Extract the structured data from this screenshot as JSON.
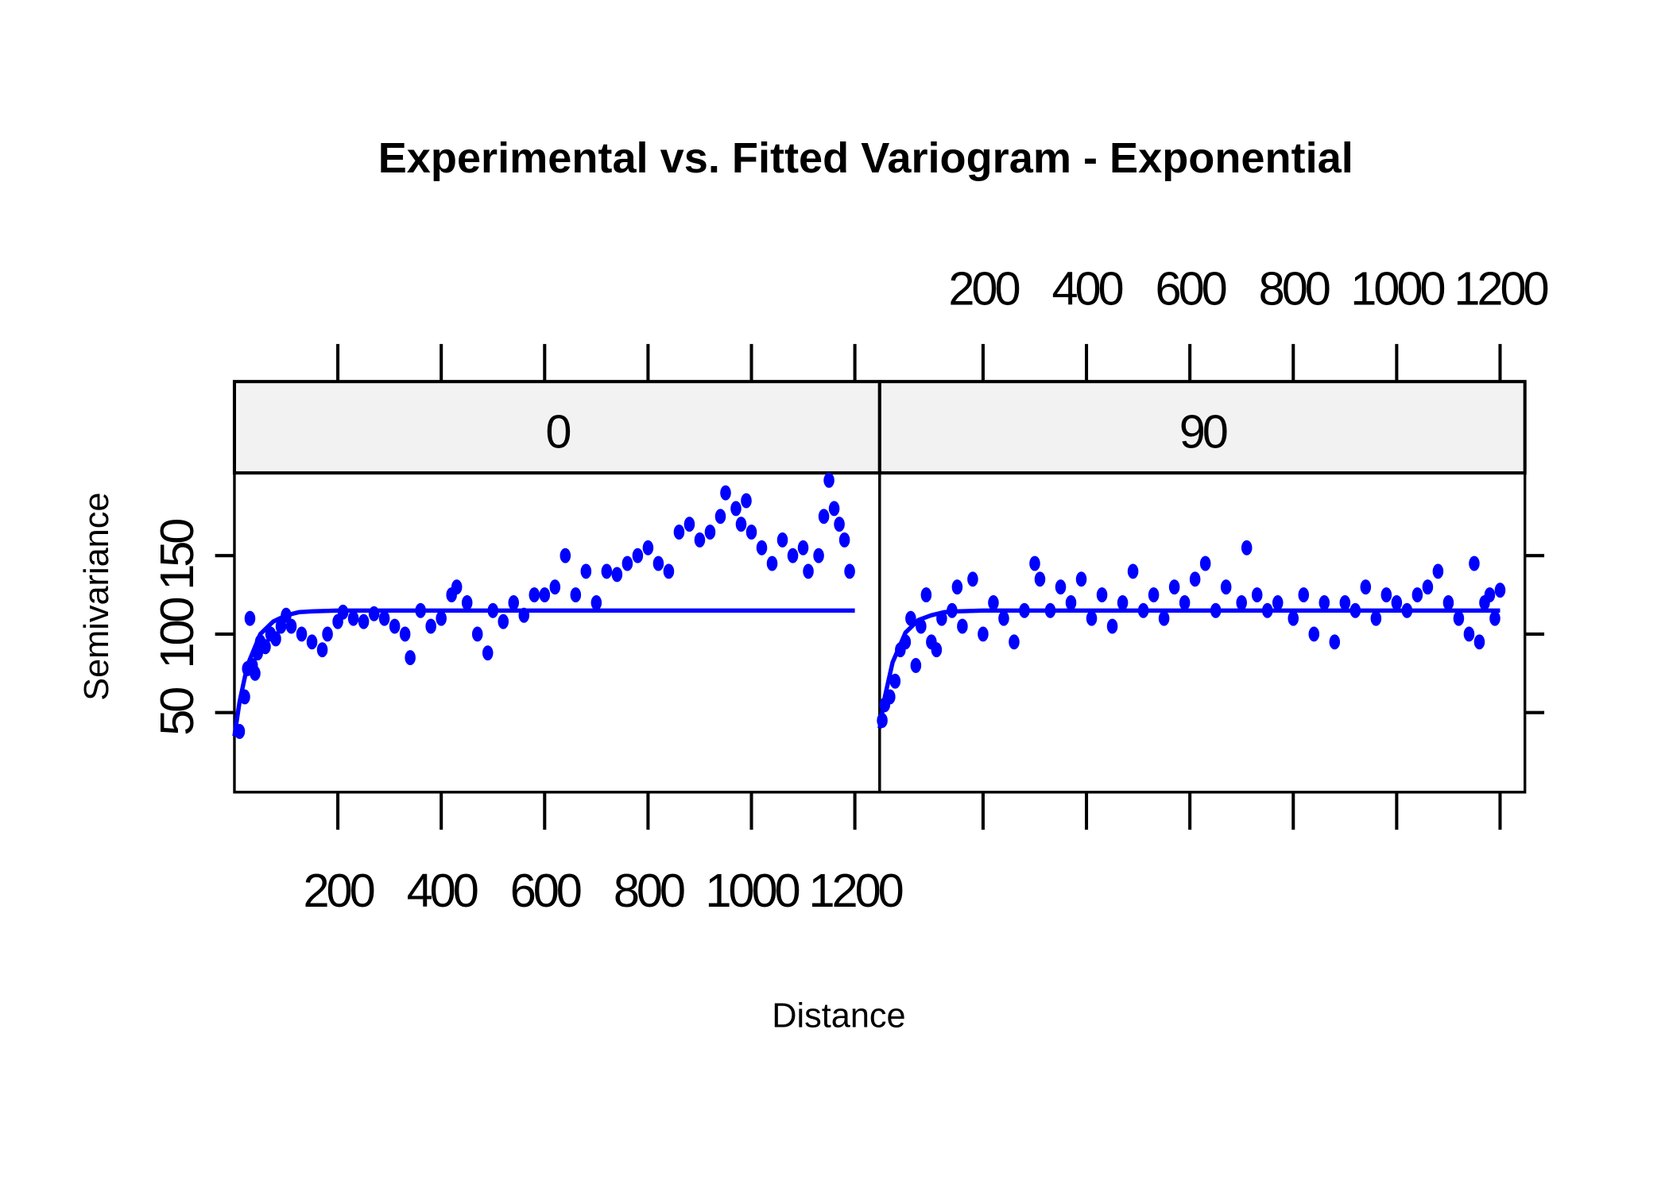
{
  "chart_data": {
    "type": "scatter",
    "title": "Experimental vs. Fitted Variogram - Exponential",
    "x_label": "Distance",
    "y_label": "Semivariance",
    "color": "#0000ff",
    "xlim": [
      0,
      1248
    ],
    "ylim": [
      -0.7,
      202.7
    ],
    "xticks": [
      200,
      400,
      600,
      800,
      1000,
      1200
    ],
    "yticks": [
      50,
      100,
      150
    ],
    "panels": [
      {
        "strip": "0",
        "x": [
          10,
          20,
          25,
          30,
          35,
          40,
          45,
          50,
          60,
          70,
          80,
          90,
          100,
          110,
          130,
          150,
          170,
          180,
          200,
          210,
          230,
          250,
          270,
          290,
          310,
          330,
          340,
          360,
          380,
          400,
          420,
          430,
          450,
          470,
          490,
          500,
          520,
          540,
          560,
          580,
          600,
          620,
          640,
          660,
          680,
          700,
          720,
          740,
          760,
          780,
          800,
          820,
          840,
          860,
          880,
          900,
          920,
          940,
          950,
          970,
          980,
          990,
          1000,
          1020,
          1040,
          1060,
          1080,
          1100,
          1110,
          1130,
          1140,
          1150,
          1160,
          1170,
          1180,
          1190
        ],
        "y": [
          38,
          60,
          78,
          110,
          80,
          75,
          88,
          95,
          92,
          100,
          97,
          105,
          112,
          105,
          100,
          95,
          90,
          100,
          108,
          114,
          110,
          108,
          113,
          110,
          105,
          100,
          85,
          115,
          105,
          110,
          125,
          130,
          120,
          100,
          88,
          115,
          108,
          120,
          112,
          125,
          125,
          130,
          150,
          125,
          140,
          120,
          140,
          138,
          145,
          150,
          155,
          145,
          140,
          165,
          170,
          160,
          165,
          175,
          190,
          180,
          170,
          185,
          165,
          155,
          145,
          160,
          150,
          155,
          140,
          150,
          175,
          198,
          180,
          170,
          160,
          140
        ],
        "fit_x": [
          0,
          10,
          25,
          50,
          75,
          100,
          125,
          150,
          200,
          400,
          600,
          800,
          1000,
          1200
        ],
        "fit_y": [
          35,
          57,
          80,
          100,
          108,
          112,
          114,
          114.5,
          115,
          115,
          115,
          115,
          115,
          115
        ]
      },
      {
        "strip": "90",
        "x": [
          5,
          10,
          20,
          30,
          40,
          50,
          60,
          70,
          80,
          90,
          100,
          110,
          120,
          140,
          150,
          160,
          180,
          200,
          220,
          240,
          260,
          280,
          300,
          310,
          330,
          350,
          370,
          390,
          410,
          430,
          450,
          470,
          490,
          510,
          530,
          550,
          570,
          590,
          610,
          630,
          650,
          670,
          700,
          710,
          730,
          750,
          770,
          800,
          820,
          840,
          860,
          880,
          900,
          920,
          940,
          960,
          980,
          1000,
          1020,
          1040,
          1060,
          1080,
          1100,
          1120,
          1140,
          1150,
          1160,
          1170,
          1180,
          1190,
          1200
        ],
        "y": [
          45,
          55,
          60,
          70,
          90,
          95,
          110,
          80,
          105,
          125,
          95,
          90,
          110,
          115,
          130,
          105,
          135,
          100,
          120,
          110,
          95,
          115,
          145,
          135,
          115,
          130,
          120,
          135,
          110,
          125,
          105,
          120,
          140,
          115,
          125,
          110,
          130,
          120,
          135,
          145,
          115,
          130,
          120,
          155,
          125,
          115,
          120,
          110,
          125,
          100,
          120,
          95,
          120,
          115,
          130,
          110,
          125,
          120,
          115,
          125,
          130,
          140,
          120,
          110,
          100,
          145,
          95,
          120,
          125,
          110,
          128
        ],
        "fit_x": [
          0,
          10,
          25,
          50,
          75,
          100,
          125,
          150,
          200,
          400,
          600,
          800,
          1000,
          1200
        ],
        "fit_y": [
          40,
          60,
          82,
          101,
          109,
          112,
          114,
          114.5,
          115,
          115,
          115,
          115,
          115,
          115
        ]
      }
    ]
  }
}
